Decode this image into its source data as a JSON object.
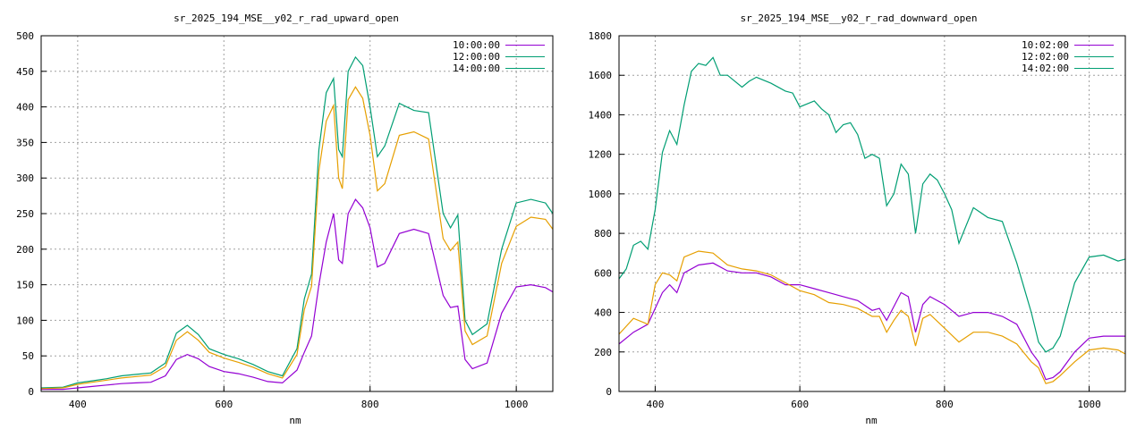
{
  "chart_data": [
    {
      "type": "line",
      "title": "sr_2025_194_MSE__y02_r_rad_upward_open",
      "xlabel": "nm",
      "ylabel": "",
      "xlim": [
        350,
        1050
      ],
      "ylim": [
        0,
        500
      ],
      "xticks": [
        400,
        600,
        800,
        1000
      ],
      "yticks": [
        0,
        50,
        100,
        150,
        200,
        250,
        300,
        350,
        400,
        450,
        500
      ],
      "grid": true,
      "legend": "top-right",
      "series": [
        {
          "name": "10:00:00",
          "color": "#9400d3",
          "x": [
            350,
            380,
            400,
            420,
            440,
            460,
            480,
            500,
            520,
            535,
            550,
            565,
            580,
            600,
            620,
            640,
            660,
            680,
            700,
            710,
            720,
            730,
            740,
            750,
            757,
            762,
            770,
            780,
            790,
            800,
            810,
            820,
            840,
            860,
            880,
            900,
            910,
            920,
            930,
            940,
            960,
            980,
            1000,
            1020,
            1040,
            1050
          ],
          "y": [
            3,
            3,
            5,
            7,
            9,
            11,
            12,
            13,
            22,
            45,
            52,
            46,
            35,
            28,
            25,
            20,
            14,
            12,
            30,
            55,
            78,
            150,
            210,
            250,
            185,
            180,
            250,
            270,
            258,
            230,
            175,
            180,
            222,
            228,
            222,
            135,
            118,
            120,
            45,
            32,
            40,
            110,
            147,
            150,
            146,
            140
          ]
        },
        {
          "name": "12:00:00",
          "color": "#009e73",
          "x": [
            350,
            380,
            400,
            420,
            440,
            460,
            480,
            500,
            520,
            535,
            550,
            565,
            580,
            600,
            620,
            640,
            660,
            680,
            700,
            710,
            720,
            730,
            740,
            750,
            757,
            762,
            770,
            780,
            790,
            800,
            810,
            820,
            840,
            860,
            880,
            900,
            910,
            920,
            930,
            940,
            960,
            980,
            1000,
            1020,
            1040,
            1050
          ],
          "y": [
            5,
            6,
            12,
            15,
            18,
            22,
            24,
            26,
            40,
            82,
            93,
            80,
            60,
            52,
            46,
            38,
            28,
            22,
            60,
            130,
            165,
            340,
            420,
            440,
            340,
            330,
            450,
            470,
            458,
            400,
            330,
            345,
            405,
            395,
            392,
            250,
            230,
            248,
            100,
            80,
            95,
            200,
            265,
            270,
            265,
            250
          ]
        },
        {
          "name": "14:00:00",
          "color": "#e69f00",
          "x": [
            350,
            380,
            400,
            420,
            440,
            460,
            480,
            500,
            520,
            535,
            550,
            565,
            580,
            600,
            620,
            640,
            660,
            680,
            700,
            710,
            720,
            730,
            740,
            750,
            757,
            762,
            770,
            780,
            790,
            800,
            810,
            820,
            840,
            860,
            880,
            900,
            910,
            920,
            930,
            940,
            960,
            980,
            1000,
            1020,
            1040,
            1050
          ],
          "y": [
            4,
            5,
            10,
            13,
            16,
            19,
            21,
            23,
            35,
            72,
            84,
            72,
            55,
            47,
            41,
            34,
            25,
            19,
            52,
            115,
            148,
            310,
            380,
            402,
            300,
            285,
            410,
            428,
            412,
            360,
            282,
            292,
            360,
            365,
            355,
            215,
            198,
            210,
            85,
            66,
            78,
            180,
            232,
            245,
            242,
            228
          ]
        }
      ]
    },
    {
      "type": "line",
      "title": "sr_2025_194_MSE__y02_r_rad_downward_open",
      "xlabel": "nm",
      "ylabel": "",
      "xlim": [
        350,
        1050
      ],
      "ylim": [
        0,
        1800
      ],
      "xticks": [
        400,
        600,
        800,
        1000
      ],
      "yticks": [
        0,
        200,
        400,
        600,
        800,
        1000,
        1200,
        1400,
        1600,
        1800
      ],
      "grid": true,
      "legend": "top-right",
      "series": [
        {
          "name": "10:02:00",
          "color": "#9400d3",
          "x": [
            350,
            370,
            390,
            400,
            410,
            420,
            430,
            440,
            460,
            480,
            500,
            520,
            540,
            560,
            580,
            600,
            620,
            640,
            660,
            680,
            700,
            710,
            720,
            730,
            740,
            750,
            760,
            770,
            780,
            800,
            820,
            840,
            860,
            880,
            900,
            920,
            930,
            940,
            950,
            960,
            980,
            1000,
            1020,
            1040,
            1050
          ],
          "y": [
            240,
            300,
            340,
            420,
            500,
            540,
            500,
            600,
            640,
            650,
            610,
            600,
            600,
            580,
            540,
            540,
            520,
            500,
            480,
            460,
            410,
            420,
            360,
            430,
            500,
            480,
            300,
            440,
            480,
            440,
            380,
            400,
            400,
            380,
            340,
            200,
            150,
            60,
            70,
            100,
            200,
            270,
            280,
            280,
            280
          ]
        },
        {
          "name": "12:02:00",
          "color": "#009e73",
          "x": [
            350,
            360,
            370,
            380,
            390,
            400,
            410,
            420,
            430,
            440,
            450,
            460,
            470,
            480,
            490,
            500,
            520,
            530,
            540,
            560,
            580,
            590,
            600,
            620,
            630,
            640,
            650,
            660,
            670,
            680,
            690,
            700,
            710,
            720,
            730,
            740,
            750,
            760,
            770,
            780,
            790,
            800,
            810,
            820,
            840,
            860,
            880,
            900,
            920,
            930,
            940,
            950,
            960,
            980,
            1000,
            1020,
            1040,
            1050
          ],
          "y": [
            570,
            620,
            740,
            760,
            720,
            920,
            1210,
            1320,
            1250,
            1450,
            1620,
            1660,
            1650,
            1690,
            1600,
            1600,
            1540,
            1570,
            1590,
            1560,
            1520,
            1510,
            1440,
            1470,
            1430,
            1400,
            1310,
            1350,
            1360,
            1300,
            1180,
            1200,
            1180,
            940,
            1000,
            1150,
            1100,
            800,
            1050,
            1100,
            1070,
            1000,
            920,
            750,
            930,
            880,
            860,
            650,
            400,
            250,
            200,
            220,
            280,
            550,
            680,
            690,
            660,
            670
          ]
        },
        {
          "name": "14:02:00",
          "color": "#e69f00",
          "x": [
            350,
            370,
            390,
            400,
            410,
            420,
            430,
            440,
            460,
            480,
            500,
            520,
            540,
            560,
            580,
            600,
            620,
            640,
            660,
            680,
            700,
            710,
            720,
            730,
            740,
            750,
            760,
            770,
            780,
            800,
            820,
            840,
            860,
            880,
            900,
            920,
            930,
            940,
            950,
            960,
            980,
            1000,
            1020,
            1040,
            1050
          ],
          "y": [
            290,
            370,
            340,
            540,
            600,
            590,
            560,
            680,
            710,
            700,
            640,
            620,
            610,
            590,
            550,
            510,
            490,
            450,
            440,
            420,
            380,
            380,
            300,
            360,
            410,
            380,
            230,
            370,
            390,
            320,
            250,
            300,
            300,
            280,
            240,
            150,
            120,
            40,
            50,
            80,
            150,
            210,
            220,
            210,
            190
          ]
        }
      ]
    }
  ]
}
